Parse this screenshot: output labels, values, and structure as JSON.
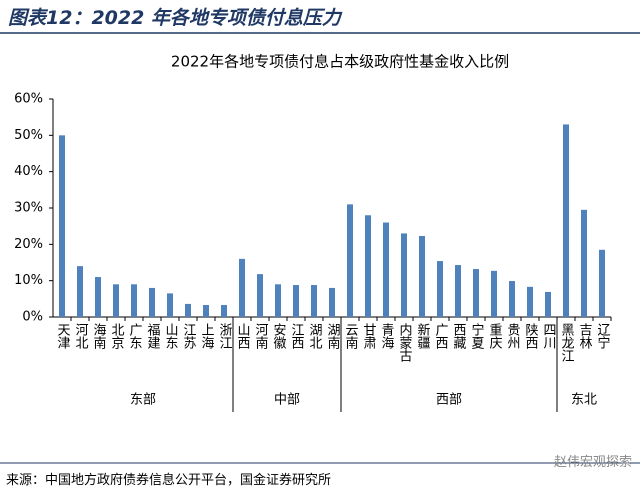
{
  "header": {
    "title": "图表12：2022 年各地专项债付息压力"
  },
  "footer": {
    "source": "来源：中国地方政府债券信息公开平台，国金证券研究所",
    "watermark": "赵伟宏观探索"
  },
  "chart_data": {
    "type": "bar",
    "title": "2022年各地专项债付息占本级政府性基金收入比例",
    "categories": [
      "天津",
      "河北",
      "海南",
      "北京",
      "广东",
      "福建",
      "山东",
      "江苏",
      "上海",
      "浙江",
      "山西",
      "河南",
      "安徽",
      "江西",
      "湖北",
      "湖南",
      "云南",
      "甘肃",
      "青海",
      "内蒙古",
      "新疆",
      "广西",
      "西藏",
      "宁夏",
      "重庆",
      "贵州",
      "陕西",
      "四川",
      "黑龙江",
      "吉林",
      "辽宁"
    ],
    "values": [
      50,
      14,
      11,
      9,
      9,
      8,
      6.5,
      3.6,
      3.3,
      3.3,
      16,
      11.8,
      9,
      8.8,
      8.8,
      8,
      31,
      28,
      26,
      23,
      22.3,
      15.4,
      14.3,
      13.2,
      12.7,
      9.9,
      8.3,
      6.9,
      53,
      29.5,
      18.5
    ],
    "color": "#4f81bd",
    "groups": [
      "东部",
      "中部",
      "西部",
      "东北"
    ],
    "ylim": [
      0,
      60
    ],
    "yticks": [
      {
        "value": 0,
        "label": "0%"
      },
      {
        "value": 10,
        "label": "10%"
      },
      {
        "value": 20,
        "label": "20%"
      },
      {
        "value": 30,
        "label": "30%"
      },
      {
        "value": 40,
        "label": "40%"
      },
      {
        "value": 50,
        "label": "50%"
      },
      {
        "value": 60,
        "label": "60%"
      }
    ]
  }
}
